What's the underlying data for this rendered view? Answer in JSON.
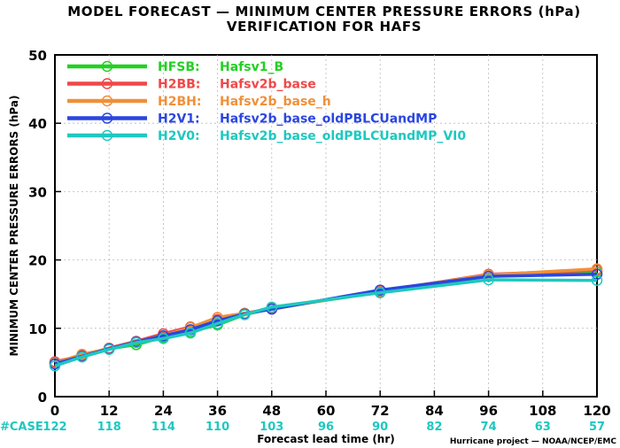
{
  "chart_data": {
    "type": "line",
    "title": "MODEL FORECAST — MINIMUM CENTER PRESSURE ERRORS (hPa)",
    "subtitle": "VERIFICATION FOR HAFS",
    "xlabel": "Forecast lead time (hr)",
    "ylabel": "MINIMUM CENTER PRESSURE ERRORS (hPa)",
    "xlim": [
      0,
      120
    ],
    "ylim": [
      0,
      50
    ],
    "xticks": [
      0,
      12,
      24,
      36,
      48,
      60,
      72,
      84,
      96,
      108,
      120
    ],
    "yticks": [
      0,
      10,
      20,
      30,
      40,
      50
    ],
    "grid": true,
    "legend_position": "top-left",
    "case_label": "#CASE",
    "x_cases": [
      0,
      12,
      24,
      36,
      48,
      60,
      72,
      84,
      96,
      108,
      120
    ],
    "case_counts": [
      122,
      118,
      114,
      110,
      103,
      96,
      90,
      82,
      74,
      63,
      57
    ],
    "credit": "Hurricane project — NOAA/NCEP/EMC",
    "series": [
      {
        "name": "HFSB:",
        "desc": "Hafsv1_B",
        "color": "#22d022",
        "x": [
          0,
          6,
          12,
          18,
          24,
          30,
          36,
          42,
          48,
          72,
          96,
          120
        ],
        "y": [
          4.9,
          6.1,
          7.0,
          7.6,
          8.7,
          9.5,
          10.5,
          12.0,
          12.9,
          15.3,
          17.6,
          18.2
        ]
      },
      {
        "name": "H2BB:",
        "desc": "Hafsv2b_base",
        "color": "#f04848",
        "x": [
          0,
          6,
          12,
          18,
          24,
          30,
          36,
          42,
          48,
          72,
          96,
          120
        ],
        "y": [
          5.1,
          6.0,
          7.1,
          8.1,
          9.2,
          10.2,
          11.3,
          12.2,
          12.9,
          15.4,
          17.9,
          18.5
        ]
      },
      {
        "name": "H2BH:",
        "desc": "Hafsv2b_base_h",
        "color": "#f0903a",
        "x": [
          0,
          6,
          12,
          18,
          24,
          30,
          36,
          42,
          48,
          72,
          96,
          120
        ],
        "y": [
          4.9,
          6.2,
          7.0,
          8.0,
          8.9,
          10.1,
          11.6,
          12.2,
          12.8,
          15.5,
          17.8,
          18.7
        ]
      },
      {
        "name": "H2V1:",
        "desc": "Hafsv2b_base_oldPBLCUandMP",
        "color": "#2a46e0",
        "x": [
          0,
          6,
          12,
          18,
          24,
          30,
          36,
          42,
          48,
          72,
          96,
          120
        ],
        "y": [
          4.8,
          5.9,
          7.0,
          8.0,
          8.9,
          9.8,
          11.1,
          12.1,
          12.8,
          15.6,
          17.6,
          17.9
        ]
      },
      {
        "name": "H2V0:",
        "desc": "Hafsv2b_base_oldPBLCUandMP_VI0",
        "color": "#1ec8c0",
        "x": [
          0,
          6,
          12,
          18,
          24,
          30,
          36,
          42,
          48,
          72,
          96,
          120
        ],
        "y": [
          4.5,
          5.8,
          6.9,
          7.9,
          8.5,
          9.3,
          10.7,
          12.0,
          13.1,
          15.2,
          17.1,
          17.0
        ]
      }
    ]
  }
}
